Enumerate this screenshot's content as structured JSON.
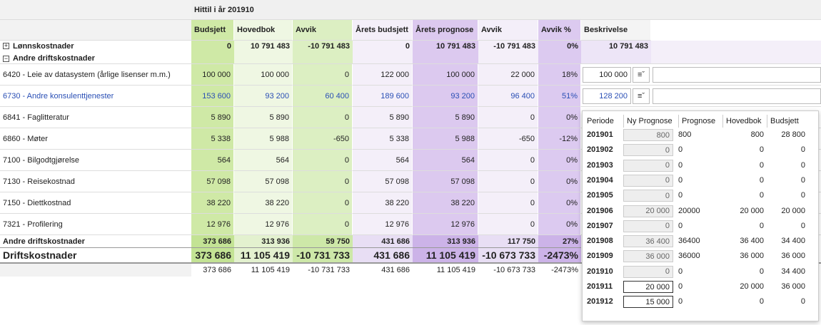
{
  "header": {
    "title": "Hittil i år 201910"
  },
  "columns": [
    "Budsjett",
    "Hovedbok",
    "Avvik",
    "Årets budsjett",
    "Årets prognose",
    "Avvik",
    "Avvik %",
    "Beskrivelse"
  ],
  "groups": {
    "labels": [
      "Lønnskostnader",
      "Andre driftskostnader"
    ],
    "values": [
      "0",
      "10 791 483",
      "-10 791 483",
      "0",
      "10 791 483",
      "-10 791 483",
      "0%"
    ],
    "prognosis": "10 791 483"
  },
  "rows": [
    {
      "label": "6420 - Leie av datasystem (årlige lisenser m.m.)",
      "values": [
        "100 000",
        "100 000",
        "0",
        "122 000",
        "100 000",
        "22 000",
        "18%"
      ],
      "prognosis": "100 000"
    },
    {
      "label": "6730 - Andre konsulenttjenester",
      "values": [
        "153 600",
        "93 200",
        "60 400",
        "189 600",
        "93 200",
        "96 400",
        "51%"
      ],
      "prognosis": "128 200"
    },
    {
      "label": "6841 - Faglitteratur",
      "values": [
        "5 890",
        "5 890",
        "0",
        "5 890",
        "5 890",
        "0",
        "0%"
      ]
    },
    {
      "label": "6860 - Møter",
      "values": [
        "5 338",
        "5 988",
        "-650",
        "5 338",
        "5 988",
        "-650",
        "-12%"
      ]
    },
    {
      "label": "7100 - Bilgodtgjørelse",
      "values": [
        "564",
        "564",
        "0",
        "564",
        "564",
        "0",
        "0%"
      ]
    },
    {
      "label": "7130 - Reisekostnad",
      "values": [
        "57 098",
        "57 098",
        "0",
        "57 098",
        "57 098",
        "0",
        "0%"
      ]
    },
    {
      "label": "7150 - Diettkostnad",
      "values": [
        "38 220",
        "38 220",
        "0",
        "38 220",
        "38 220",
        "0",
        "0%"
      ]
    },
    {
      "label": "7321 - Profilering",
      "values": [
        "12 976",
        "12 976",
        "0",
        "12 976",
        "12 976",
        "0",
        "0%"
      ]
    }
  ],
  "subtotal": {
    "label": "Andre driftskostnader",
    "values": [
      "373 686",
      "313 936",
      "59 750",
      "431 686",
      "313 936",
      "117 750",
      "27%"
    ]
  },
  "total": {
    "label": "Driftskostnader",
    "values": [
      "373 686",
      "11 105 419",
      "-10 731 733",
      "431 686",
      "11 105 419",
      "-10 673 733",
      "-2473%"
    ]
  },
  "footer": {
    "values": [
      "373 686",
      "11 105 419",
      "-10 731 733",
      "431 686",
      "11 105 419",
      "-10 673 733",
      "-2473%"
    ]
  },
  "popup": {
    "columns": [
      "Periode",
      "Ny Prognose",
      "Prognose",
      "Hovedbok",
      "Budsjett"
    ],
    "rows": [
      [
        "201901",
        "800",
        "800",
        "800",
        "28 800"
      ],
      [
        "201902",
        "0",
        "0",
        "0",
        "0"
      ],
      [
        "201903",
        "0",
        "0",
        "0",
        "0"
      ],
      [
        "201904",
        "0",
        "0",
        "0",
        "0"
      ],
      [
        "201905",
        "0",
        "0",
        "0",
        "0"
      ],
      [
        "201906",
        "20 000",
        "20000",
        "20 000",
        "20 000"
      ],
      [
        "201907",
        "0",
        "0",
        "0",
        "0"
      ],
      [
        "201908",
        "36 400",
        "36400",
        "36 400",
        "34 400"
      ],
      [
        "201909",
        "36 000",
        "36000",
        "36 000",
        "36 000"
      ],
      [
        "201910",
        "0",
        "0",
        "0",
        "34 400"
      ],
      [
        "201911",
        "20 000",
        "0",
        "20 000",
        "36 000"
      ],
      [
        "201912",
        "15 000",
        "0",
        "0",
        "0"
      ]
    ]
  }
}
